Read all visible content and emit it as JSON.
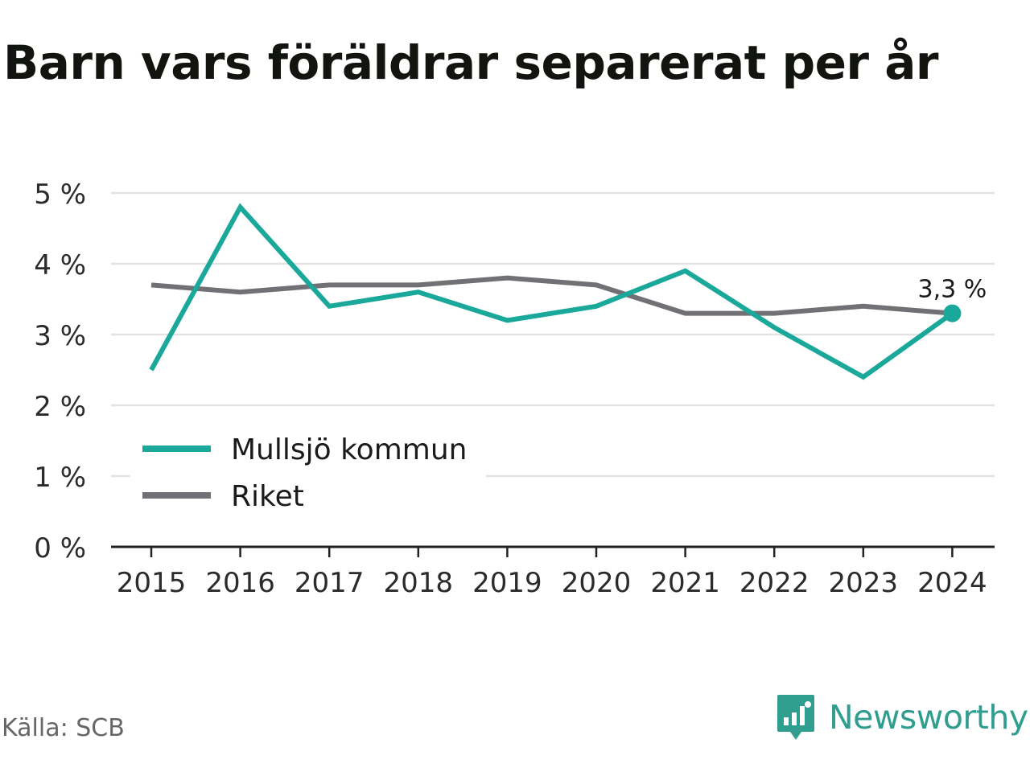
{
  "title": "Barn vars föräldrar separerat per år",
  "source": "Källa: SCB",
  "brand": "Newsworthy",
  "colors": {
    "accent": "#1aa89a",
    "secondary": "#707075",
    "grid": "#e3e3e3",
    "brand": "#2f9e8f"
  },
  "chart_data": {
    "type": "line",
    "x": [
      "2015",
      "2016",
      "2017",
      "2018",
      "2019",
      "2020",
      "2021",
      "2022",
      "2023",
      "2024"
    ],
    "series": [
      {
        "name": "Mullsjö kommun",
        "color": "#1aa89a",
        "values": [
          2.5,
          4.8,
          3.4,
          3.6,
          3.2,
          3.4,
          3.9,
          3.1,
          2.4,
          3.3
        ]
      },
      {
        "name": "Riket",
        "color": "#707075",
        "values": [
          3.7,
          3.6,
          3.7,
          3.7,
          3.8,
          3.7,
          3.3,
          3.3,
          3.4,
          3.3
        ]
      }
    ],
    "ylim": [
      0,
      5
    ],
    "yticks": [
      0,
      1,
      2,
      3,
      4,
      5
    ],
    "ytick_labels": [
      "0 %",
      "1 %",
      "2 %",
      "3 %",
      "4 %",
      "5 %"
    ],
    "end_label": "3,3 %",
    "grid": true,
    "legend_position": "bottom-left"
  }
}
